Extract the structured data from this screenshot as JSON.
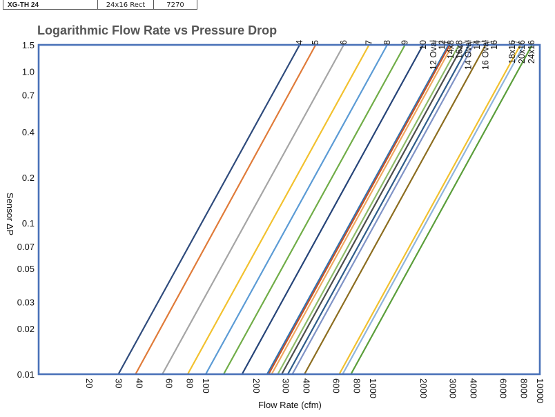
{
  "table": {
    "rows": [
      [
        "XG-TH 24",
        "24x16 Rect",
        "7270"
      ]
    ]
  },
  "chart_data": {
    "type": "line",
    "title": "Logarithmic Flow Rate vs Pressure Drop",
    "xlabel": "Flow Rate (cfm)",
    "ylabel": "Sensor ΔP",
    "xscale": "log",
    "yscale": "log",
    "xlim": [
      10,
      10000
    ],
    "ylim": [
      0.01,
      1.5
    ],
    "xticks": [
      20,
      30,
      40,
      60,
      80,
      100,
      200,
      300,
      400,
      600,
      800,
      1000,
      2000,
      3000,
      4000,
      6000,
      8000,
      10000
    ],
    "yticks": [
      0.01,
      0.02,
      0.03,
      0.05,
      0.07,
      0.1,
      0.2,
      0.4,
      0.7,
      1.0,
      1.5
    ],
    "ytick_labels": [
      "0.01",
      "0.02",
      "0.03",
      "0.05",
      "0.07",
      "0.1",
      "0.2",
      "0.4",
      "0.7",
      "1.0",
      "1.5"
    ],
    "series": [
      {
        "name": "4",
        "color": "#2f4b7c",
        "flow_at_min": 30,
        "flow_at_max": 365
      },
      {
        "name": "5",
        "color": "#e07b39",
        "flow_at_min": 38,
        "flow_at_max": 455
      },
      {
        "name": "6",
        "color": "#a5a5a5",
        "flow_at_min": 55,
        "flow_at_max": 670
      },
      {
        "name": "7",
        "color": "#f2c12e",
        "flow_at_min": 78,
        "flow_at_max": 950
      },
      {
        "name": "8",
        "color": "#5b9bd5",
        "flow_at_min": 100,
        "flow_at_max": 1220
      },
      {
        "name": "9",
        "color": "#70ad47",
        "flow_at_min": 128,
        "flow_at_max": 1560
      },
      {
        "name": "10",
        "color": "#264478",
        "flow_at_min": 165,
        "flow_at_max": 2000
      },
      {
        "name": "12 Oval",
        "color": "#2e75b6",
        "flow_at_min": 233,
        "flow_at_max": 2840
      },
      {
        "name": "12",
        "color": "#c5532a",
        "flow_at_min": 238,
        "flow_at_max": 2890
      },
      {
        "name": "14x8",
        "color": "#f0a860",
        "flow_at_min": 248,
        "flow_at_max": 3000
      },
      {
        "name": "16x8",
        "color": "#8fbc6a",
        "flow_at_min": 270,
        "flow_at_max": 3280
      },
      {
        "name": "14 Oval",
        "color": "#4d4d4d",
        "flow_at_min": 285,
        "flow_at_max": 3470
      },
      {
        "name": "14",
        "color": "#2e5c8a",
        "flow_at_min": 310,
        "flow_at_max": 3770
      },
      {
        "name": "16 Oval",
        "color": "#7f93c6",
        "flow_at_min": 330,
        "flow_at_max": 4010
      },
      {
        "name": "16",
        "color": "#8c6d1f",
        "flow_at_min": 390,
        "flow_at_max": 4740
      },
      {
        "name": "18x16",
        "color": "#f2c12e",
        "flow_at_min": 630,
        "flow_at_max": 7650
      },
      {
        "name": "20x16",
        "color": "#8fb4dc",
        "flow_at_min": 660,
        "flow_at_max": 8030
      },
      {
        "name": "24x16",
        "color": "#5a9e3a",
        "flow_at_min": 740,
        "flow_at_max": 9000
      }
    ]
  }
}
